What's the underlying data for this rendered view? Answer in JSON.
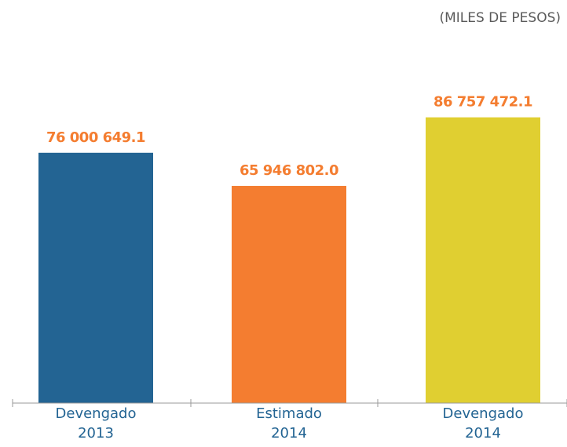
{
  "chart_data": {
    "type": "bar",
    "unit_label": "(MILES DE PESOS)",
    "categories": [
      {
        "line1": "Devengado",
        "line2": "2013"
      },
      {
        "line1": "Estimado",
        "line2": "2014"
      },
      {
        "line1": "Devengado",
        "line2": "2014"
      }
    ],
    "values": [
      76000649.1,
      65946802.0,
      86757472.1
    ],
    "value_labels": [
      "76 000 649.1",
      "65 946 802.0",
      "86 757 472.1"
    ],
    "bar_colors": [
      "#236493",
      "#f47d30",
      "#e0cf31"
    ],
    "value_label_color": "#f47d30",
    "category_label_color": "#236493",
    "ylim": [
      0,
      100000000
    ],
    "grid": false,
    "legend": "none"
  }
}
